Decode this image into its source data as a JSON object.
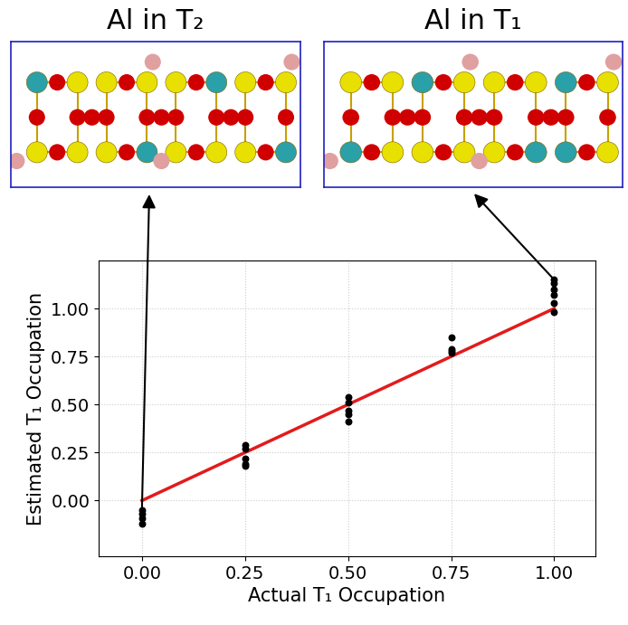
{
  "chart_data": {
    "type": "scatter",
    "x_label": "Actual T₁ Occupation",
    "y_label": "Estimated T₁ Occupation",
    "annotations": [
      "Al in T₂",
      "Al in T₁"
    ],
    "series": [
      {
        "type": "scatter",
        "color": "#000000",
        "marker": "o",
        "x": [
          0,
          0,
          0,
          0,
          0.25,
          0.25,
          0.25,
          0.25,
          0.25,
          0.5,
          0.5,
          0.5,
          0.5,
          0.5,
          0.75,
          0.75,
          0.75,
          0.75,
          1,
          1,
          1,
          1,
          1,
          1
        ],
        "values": [
          -0.05,
          -0.07,
          -0.09,
          -0.12,
          0.29,
          0.27,
          0.22,
          0.19,
          0.18,
          0.54,
          0.51,
          0.47,
          0.45,
          0.41,
          0.85,
          0.79,
          0.78,
          0.77,
          1.15,
          1.13,
          1.1,
          1.07,
          1.03,
          0.98
        ]
      },
      {
        "type": "line",
        "color": "#e31a1c",
        "line_style": "solid",
        "x": [
          0,
          1
        ],
        "values": [
          0,
          1
        ]
      }
    ],
    "xlim": [
      -0.105,
      1.1
    ],
    "ylim": [
      -0.29,
      1.25
    ],
    "xticks": [
      {
        "value": 0,
        "label": "0.00"
      },
      {
        "value": 0.25,
        "label": "0.25"
      },
      {
        "value": 0.5,
        "label": "0.50"
      },
      {
        "value": 0.75,
        "label": "0.75"
      },
      {
        "value": 1,
        "label": "1.00"
      }
    ],
    "yticks": [
      {
        "value": 0,
        "label": "0.00"
      },
      {
        "value": 0.25,
        "label": "0.25"
      },
      {
        "value": 0.5,
        "label": "0.50"
      },
      {
        "value": 0.75,
        "label": "0.75"
      },
      {
        "value": 1,
        "label": "1.00"
      }
    ],
    "grid": true
  }
}
